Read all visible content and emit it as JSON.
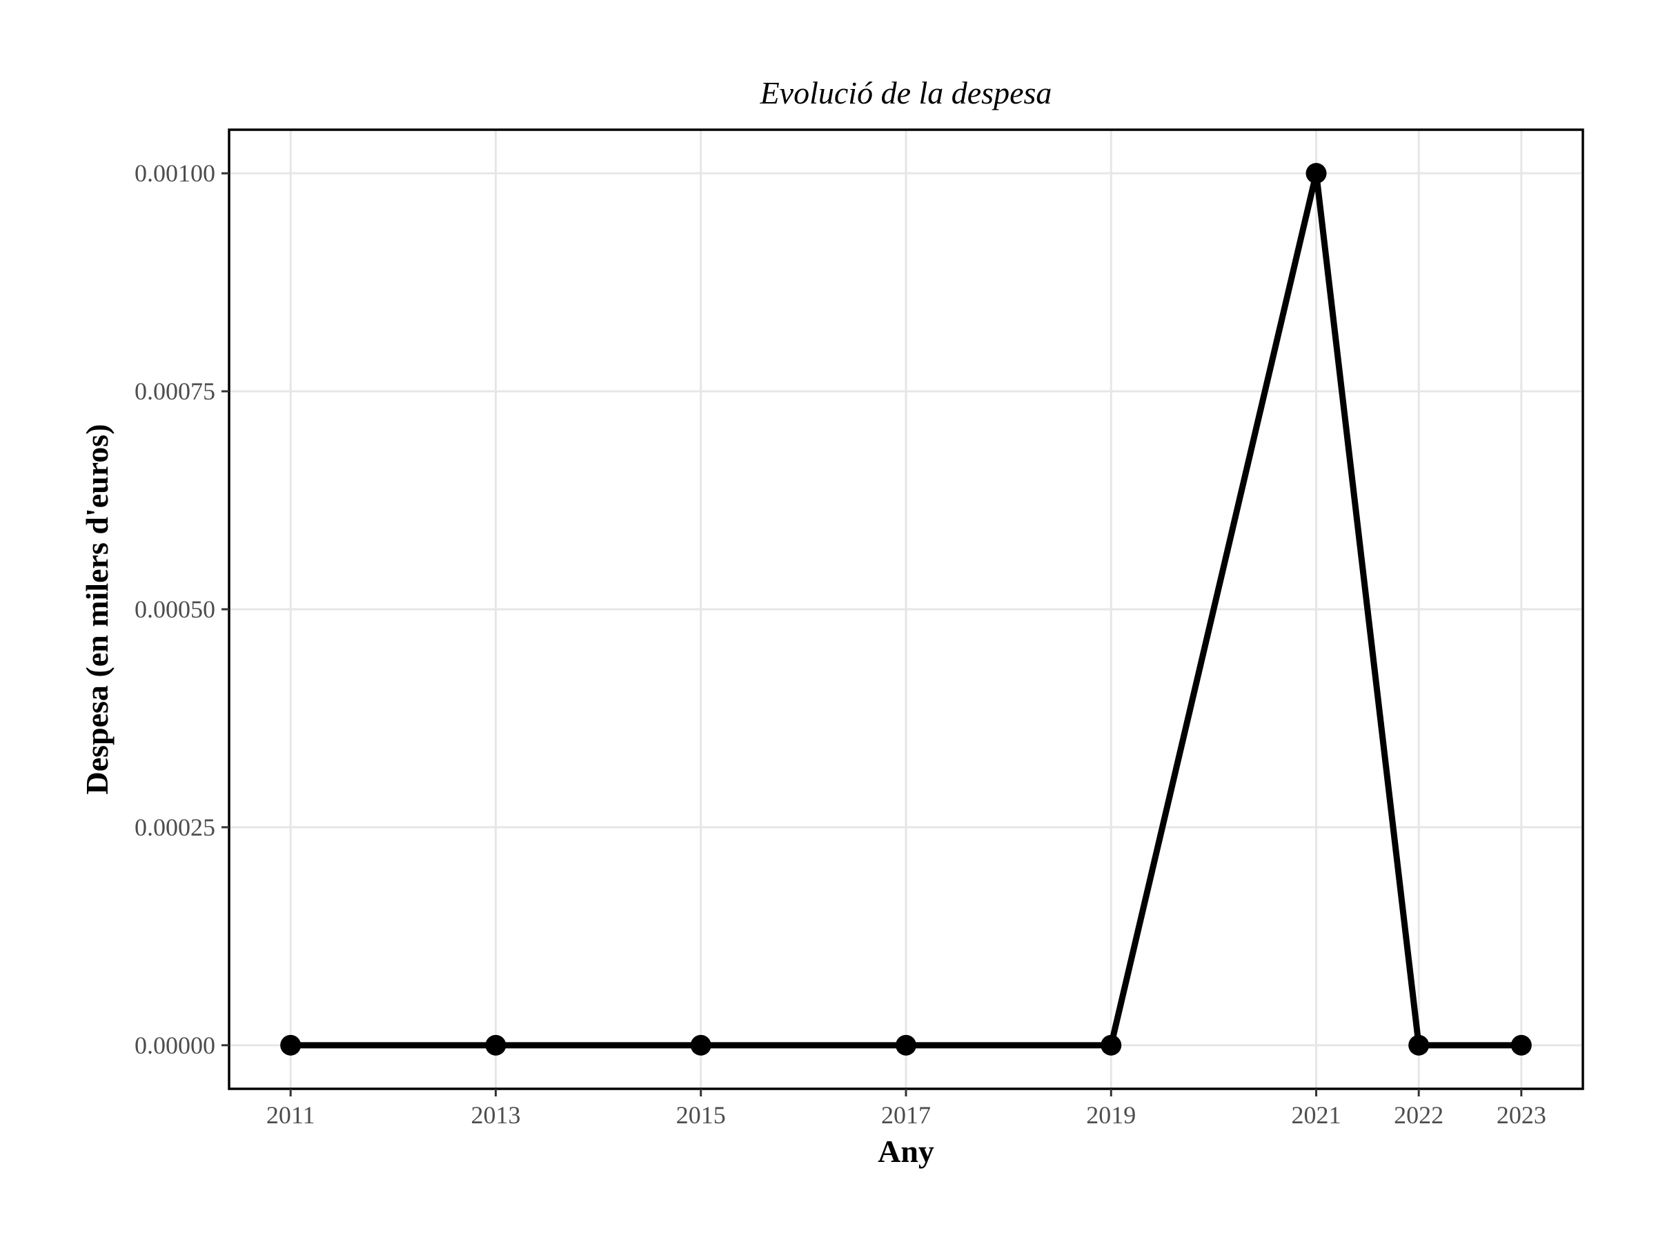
{
  "chart_data": {
    "type": "line",
    "title": "Evolució de la despesa",
    "xlabel": "Any",
    "ylabel": "Despesa (en milers d'euros)",
    "x": [
      2011,
      2013,
      2015,
      2017,
      2019,
      2021,
      2022,
      2023
    ],
    "values": [
      0,
      0,
      0,
      0,
      0,
      0.001,
      0,
      0
    ],
    "x_ticks": [
      2011,
      2013,
      2015,
      2017,
      2019,
      2021,
      2022,
      2023
    ],
    "x_tick_labels": [
      "2011",
      "2013",
      "2015",
      "2017",
      "2019",
      "2021",
      "2022",
      "2023"
    ],
    "y_ticks": [
      0,
      0.00025,
      0.0005,
      0.00075,
      0.001
    ],
    "y_tick_labels": [
      "0.00000",
      "0.00025",
      "0.00050",
      "0.00075",
      "0.00100"
    ],
    "xlim": [
      2010.4,
      2023.6
    ],
    "ylim": [
      -5e-05,
      0.00105
    ],
    "grid": true,
    "legend": "none",
    "line_color": "#000000"
  }
}
